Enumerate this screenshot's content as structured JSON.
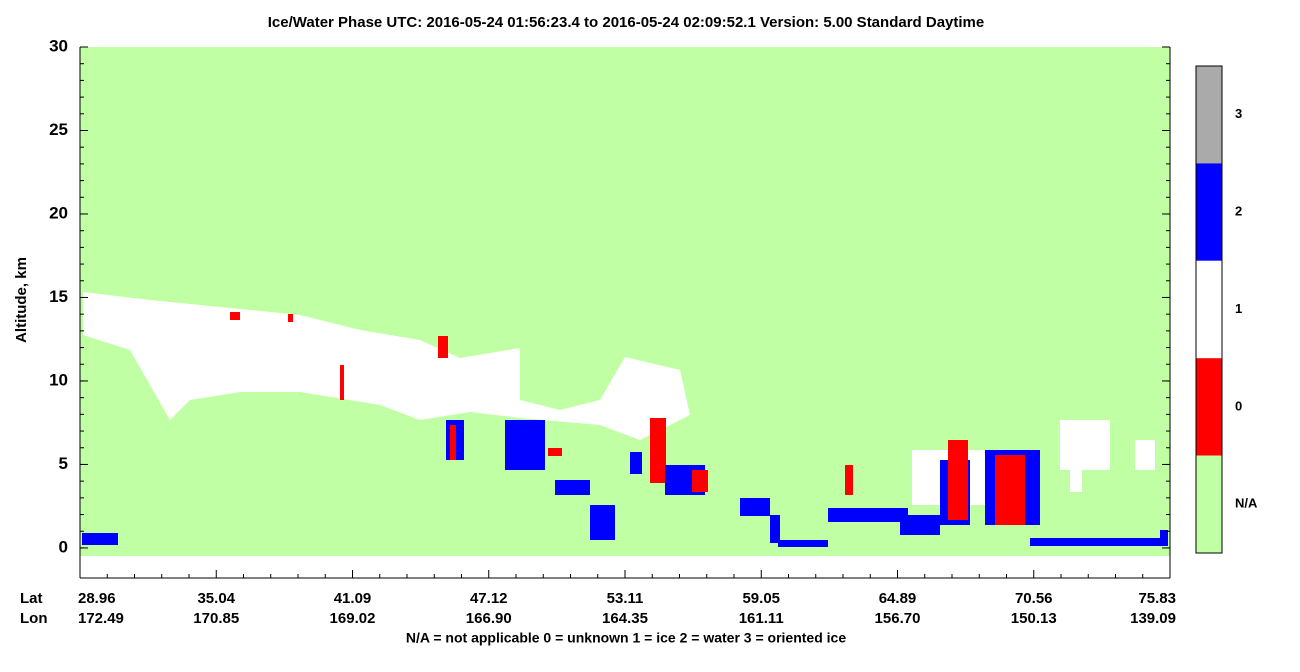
{
  "chart_data": {
    "type": "curtain",
    "title": "Ice/Water Phase    UTC:  2016-05-24   01:56:23.4  to  2016-05-24   02:09:52.1    Version: 5.00  Standard Daytime",
    "y_label": "Altitude, km",
    "ylim": [
      -1.8,
      30
    ],
    "yticks": [
      0,
      5,
      10,
      15,
      20,
      25,
      30
    ],
    "lat_label": "Lat",
    "lon_label": "Lon",
    "x_ticks": [
      {
        "lat": "28.96",
        "lon": "172.49"
      },
      {
        "lat": "35.04",
        "lon": "170.85"
      },
      {
        "lat": "41.09",
        "lon": "169.02"
      },
      {
        "lat": "47.12",
        "lon": "166.90"
      },
      {
        "lat": "53.11",
        "lon": "164.35"
      },
      {
        "lat": "59.05",
        "lon": "161.11"
      },
      {
        "lat": "64.89",
        "lon": "156.70"
      },
      {
        "lat": "70.56",
        "lon": "150.13"
      },
      {
        "lat": "75.83",
        "lon": "139.09"
      }
    ],
    "colorbar": [
      {
        "label": "3",
        "color": "#aaaaaa"
      },
      {
        "label": "2",
        "color": "#0000ff"
      },
      {
        "label": "1",
        "color": "#ffffff"
      },
      {
        "label": "0",
        "color": "#ff0000"
      },
      {
        "label": "N/A",
        "color": "#c1ffa5"
      }
    ],
    "footer": "N/A = not applicable     0 = unknown     1 = ice     2 = water     3 = oriented ice"
  }
}
